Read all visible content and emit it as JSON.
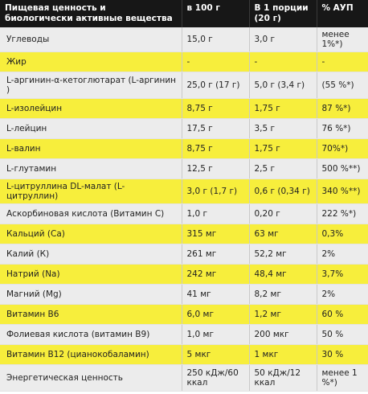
{
  "header": {
    "col1": "Пищевая ценность и биологически активные вещества",
    "col2": "в 100 г",
    "col3": "В 1 порции (20 г)",
    "col4": "% АУП"
  },
  "rows": [
    {
      "name": "Углеводы",
      "per100": "15,0 г",
      "perServing": "3,0 г",
      "percent": "менее 1%*)",
      "style": "grey"
    },
    {
      "name": "Жир",
      "per100": "-",
      "perServing": "-",
      "percent": "-",
      "style": "yellow"
    },
    {
      "name": "L-аргинин-α-кетоглютарат (L-аргинин )",
      "per100": "25,0 г (17 г)",
      "perServing": "5,0 г (3,4 г)",
      "percent": "(55 %*)",
      "style": "grey"
    },
    {
      "name": "L-изолейцин",
      "per100": "8,75 г",
      "perServing": "1,75 г",
      "percent": "87 %*)",
      "style": "yellow"
    },
    {
      "name": "L-лейцин",
      "per100": "17,5 г",
      "perServing": "3,5 г",
      "percent": "76 %*)",
      "style": "grey"
    },
    {
      "name": "L-валин",
      "per100": "8,75 г",
      "perServing": "1,75 г",
      "percent": "70%*)",
      "style": "yellow"
    },
    {
      "name": "L-глутамин",
      "per100": "12,5 г",
      "perServing": "2,5 г",
      "percent": "500 %**)",
      "style": "grey"
    },
    {
      "name": "L-цитруллина DL-малат (L-цитруллин)",
      "per100": "3,0 г (1,7 г)",
      "perServing": "0,6 г (0,34 г)",
      "percent": "340 %**)",
      "style": "yellow"
    },
    {
      "name": "Аскорбиновая кислота (Витамин С)",
      "per100": "1,0 г",
      "perServing": "0,20 г",
      "percent": "222 %*)",
      "style": "grey"
    },
    {
      "name": "Кальций (Са)",
      "per100": "315 мг",
      "perServing": "63 мг",
      "percent": "0,3%",
      "style": "yellow"
    },
    {
      "name": "Калий (К)",
      "per100": "261 мг",
      "perServing": "52,2 мг",
      "percent": "2%",
      "style": "grey"
    },
    {
      "name": "Натрий (Na)",
      "per100": "242 мг",
      "perServing": "48,4 мг",
      "percent": "3,7%",
      "style": "yellow"
    },
    {
      "name": "Магний (Mg)",
      "per100": "41 мг",
      "perServing": "8,2 мг",
      "percent": "2%",
      "style": "grey"
    },
    {
      "name": "Витамин В6",
      "per100": "6,0 мг",
      "perServing": "1,2 мг",
      "percent": "60 %",
      "style": "yellow"
    },
    {
      "name": "Фолиевая кислота (витамин В9)",
      "per100": "1,0 мг",
      "perServing": "200 мкг",
      "percent": "50 %",
      "style": "grey"
    },
    {
      "name": "Витамин В12 (цианокобаламин)",
      "per100": "5 мкг",
      "perServing": "1 мкг",
      "percent": "30 %",
      "style": "yellow"
    },
    {
      "name": "Энергетическая ценность",
      "per100": "250 кДж/60 ккал",
      "perServing": "50 кДж/12 ккал",
      "percent": "менее 1 %*)",
      "style": "grey"
    }
  ]
}
